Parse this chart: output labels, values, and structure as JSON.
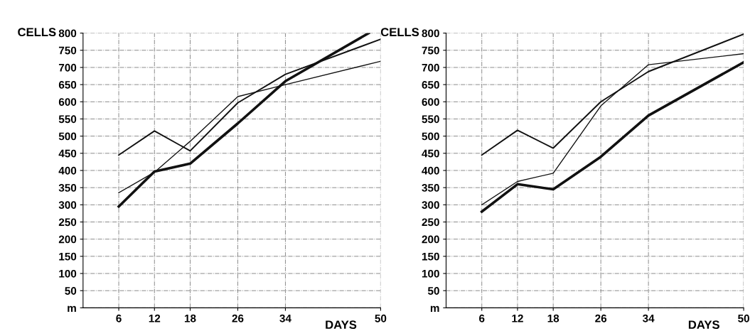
{
  "chart_data": [
    {
      "type": "line",
      "xlabel": "DAYS",
      "ylabel": "CELLS",
      "xlim": [
        0,
        50
      ],
      "ylim": [
        0,
        800
      ],
      "xticks": [
        6,
        12,
        18,
        26,
        34,
        50
      ],
      "yticks": [
        {
          "value": 0,
          "label": "m"
        },
        50,
        100,
        150,
        200,
        250,
        300,
        350,
        400,
        450,
        500,
        550,
        600,
        650,
        700,
        750,
        800
      ],
      "grid": true,
      "legend": false,
      "marker": "none",
      "line_style": "solid",
      "series": [
        {
          "color": "#111111",
          "x": [
            6,
            12,
            18,
            26,
            34,
            50
          ],
          "values": [
            445,
            515,
            457,
            597,
            680,
            782
          ]
        },
        {
          "color": "#111111",
          "x": [
            6,
            12,
            18,
            26,
            34,
            50
          ],
          "values": [
            335,
            395,
            485,
            615,
            650,
            718
          ]
        },
        {
          "color": "#111111",
          "x": [
            6,
            12,
            18,
            26,
            34,
            48
          ],
          "values": [
            295,
            397,
            420,
            537,
            660,
            800
          ]
        }
      ]
    },
    {
      "type": "line",
      "xlabel": "DAYS",
      "ylabel": "CELLS",
      "xlim": [
        0,
        50
      ],
      "ylim": [
        0,
        800
      ],
      "xticks": [
        6,
        12,
        18,
        26,
        34,
        50
      ],
      "yticks": [
        {
          "value": 0,
          "label": "m"
        },
        50,
        100,
        150,
        200,
        250,
        300,
        350,
        400,
        450,
        500,
        550,
        600,
        650,
        700,
        750,
        800
      ],
      "grid": true,
      "legend": false,
      "marker": "none",
      "line_style": "solid",
      "series": [
        {
          "color": "#111111",
          "x": [
            6,
            12,
            18,
            26,
            34,
            50
          ],
          "values": [
            445,
            517,
            465,
            600,
            688,
            797
          ]
        },
        {
          "color": "#111111",
          "x": [
            6,
            12,
            18,
            26,
            34,
            50
          ],
          "values": [
            300,
            368,
            392,
            588,
            708,
            740
          ]
        },
        {
          "color": "#111111",
          "x": [
            6,
            12,
            18,
            26,
            34,
            50
          ],
          "values": [
            280,
            360,
            345,
            440,
            560,
            715
          ]
        }
      ]
    }
  ]
}
